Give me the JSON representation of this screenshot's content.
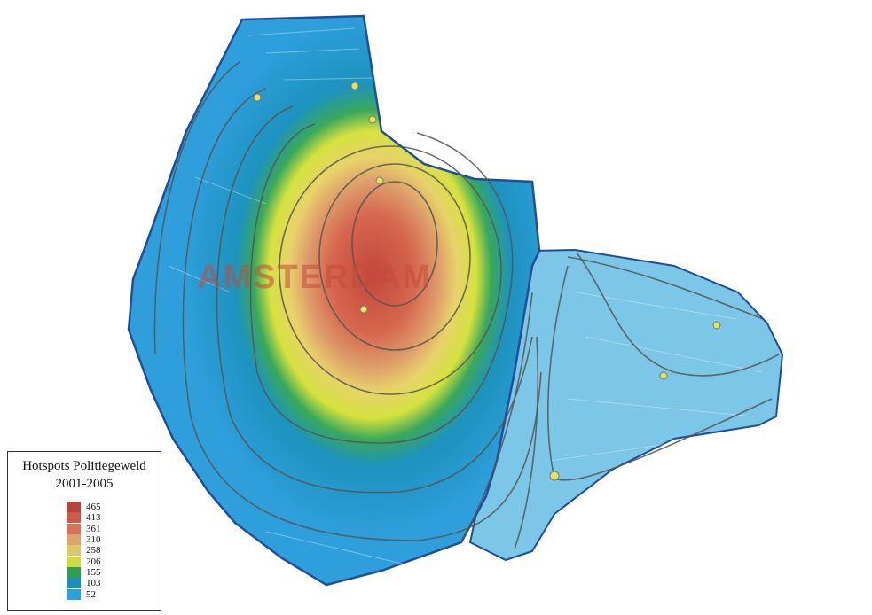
{
  "map": {
    "city_label": "AMSTERDAM"
  },
  "legend": {
    "title": "Hotspots Politiegeweld",
    "subtitle": "2001-2005",
    "classes": [
      {
        "value": "465",
        "color": "#b8433a"
      },
      {
        "value": "413",
        "color": "#cc5a44"
      },
      {
        "value": "361",
        "color": "#d7745a"
      },
      {
        "value": "310",
        "color": "#dca46a"
      },
      {
        "value": "258",
        "color": "#d9c96a"
      },
      {
        "value": "206",
        "color": "#cfdb3e"
      },
      {
        "value": "155",
        "color": "#2e9e57"
      },
      {
        "value": "103",
        "color": "#1c8fb8"
      },
      {
        "value": "52",
        "color": "#2aa0dc"
      }
    ]
  },
  "colors": {
    "outline": "#1f4f9a",
    "contour": "#555555",
    "outer_blue": "#2d9ad8",
    "east_blue": "#74c3e6"
  }
}
